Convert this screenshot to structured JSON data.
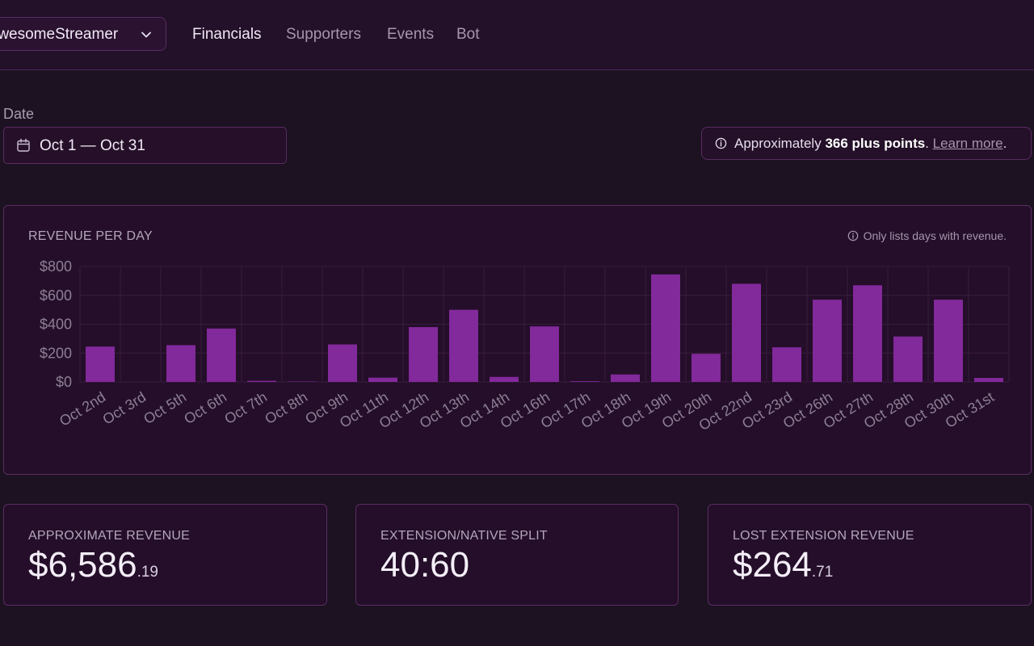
{
  "nav": {
    "channel_name": "AwesomeStreamer",
    "tabs": [
      {
        "label": "Financials",
        "active": true
      },
      {
        "label": "Supporters",
        "active": false
      },
      {
        "label": "Events",
        "active": false
      },
      {
        "label": "Bot",
        "active": false
      }
    ]
  },
  "filters": {
    "date_label": "Date",
    "date_value": "Oct 1 — Oct 31"
  },
  "notice": {
    "prefix": "Approximately ",
    "emphasis": "366 plus points",
    "suffix": ". ",
    "link": "Learn more",
    "end": "."
  },
  "revenue_chart": {
    "title": "REVENUE PER DAY",
    "note": "Only lists days with revenue."
  },
  "stats": {
    "approx_revenue": {
      "title": "APPROXIMATE REVENUE",
      "main": "$6,586",
      "cents": ".19"
    },
    "split": {
      "title": "EXTENSION/NATIVE SPLIT",
      "main": "40:60"
    },
    "lost_revenue": {
      "title": "LOST EXTENSION REVENUE",
      "main": "$264",
      "cents": ".71"
    }
  },
  "colors": {
    "bar": "#82299b",
    "grid": "#3a1c40",
    "tick": "#8d7f95"
  },
  "chart_data": {
    "type": "bar",
    "title": "REVENUE PER DAY",
    "categories": [
      "Oct 2nd",
      "Oct 3rd",
      "Oct 5th",
      "Oct 6th",
      "Oct 7th",
      "Oct 8th",
      "Oct 9th",
      "Oct 11th",
      "Oct 12th",
      "Oct 13th",
      "Oct 14th",
      "Oct 16th",
      "Oct 17th",
      "Oct 18th",
      "Oct 19th",
      "Oct 20th",
      "Oct 22nd",
      "Oct 23rd",
      "Oct 26th",
      "Oct 27th",
      "Oct 28th",
      "Oct 30th",
      "Oct 31st"
    ],
    "values": [
      245,
      0,
      255,
      370,
      8,
      3,
      260,
      30,
      380,
      500,
      35,
      385,
      5,
      52,
      745,
      195,
      680,
      240,
      570,
      670,
      315,
      570,
      28
    ],
    "ylim": [
      0,
      800
    ],
    "yticks": [
      0,
      200,
      400,
      600,
      800
    ],
    "ytick_labels": [
      "$0",
      "$200",
      "$400",
      "$600",
      "$800"
    ],
    "grid": true,
    "legend": "none"
  }
}
